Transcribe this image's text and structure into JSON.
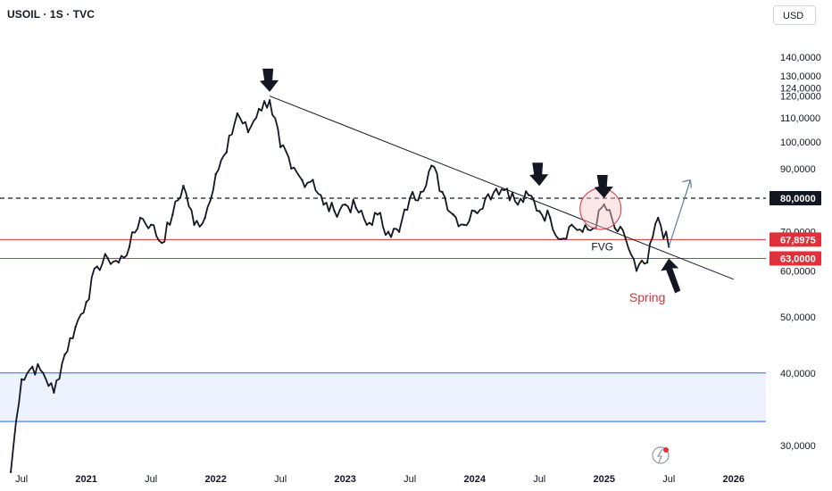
{
  "header": {
    "symbol": "USOIL · 1S · TVC",
    "currency": "USD"
  },
  "colors": {
    "price_line": "#131722",
    "trendline": "#131722",
    "red_level": "#e0303a",
    "blue_level": "#2962ff",
    "blue_zone": "#eef2ff",
    "arrow_dark": "#131722",
    "projection": "#5b7fa6",
    "circle_fill": "#f6c7cc",
    "circle_stroke": "#e0303a",
    "dashed_level": "#131722",
    "badge_black": "#131722",
    "badge_red": "#e0303a",
    "spring_text": "#e0303a",
    "grid": "#ffffff"
  },
  "chart_data": {
    "type": "line",
    "title": "USOIL · 1S · TVC",
    "xlabel": "",
    "ylabel": "",
    "ylim": [
      25,
      150
    ],
    "log_scale": true,
    "grid": false,
    "x_ticks": [
      "Jul",
      "2021",
      "Jul",
      "2022",
      "Jul",
      "2023",
      "Jul",
      "2024",
      "Jul",
      "2025",
      "Jul",
      "2026"
    ],
    "y_ticks": [
      "140,0000",
      "130,0000",
      "120,0000",
      "110,0000",
      "100,0000",
      "90,0000",
      "70,0000",
      "60,0000",
      "50,0000",
      "40,0000",
      "30,0000"
    ],
    "price_labels": [
      {
        "label": "124,0000",
        "value": 124,
        "style": "plain"
      },
      {
        "label": "80,0000",
        "value": 80,
        "style": "black"
      },
      {
        "label": "67,8975",
        "value": 67.9,
        "style": "red"
      },
      {
        "label": "63,0000",
        "value": 63,
        "style": "red"
      }
    ],
    "series": [
      {
        "x": [
          "2020-06",
          "2020-07",
          "2020-08",
          "2020-09",
          "2020-10",
          "2020-11",
          "2020-12",
          "2021-01",
          "2021-02",
          "2021-03",
          "2021-04",
          "2021-05",
          "2021-06",
          "2021-07",
          "2021-08",
          "2021-09",
          "2021-10",
          "2021-11",
          "2021-12",
          "2022-01",
          "2022-02",
          "2022-03",
          "2022-04",
          "2022-05",
          "2022-06",
          "2022-07",
          "2022-08",
          "2022-09",
          "2022-10",
          "2022-11",
          "2022-12",
          "2023-01",
          "2023-02",
          "2023-03",
          "2023-04",
          "2023-05",
          "2023-06",
          "2023-07",
          "2023-08",
          "2023-09",
          "2023-10",
          "2023-11",
          "2023-12",
          "2024-01",
          "2024-02",
          "2024-03",
          "2024-04",
          "2024-05",
          "2024-06",
          "2024-07",
          "2024-08",
          "2024-09",
          "2024-10",
          "2024-11",
          "2024-12",
          "2025-01",
          "2025-02",
          "2025-03",
          "2025-04",
          "2025-05",
          "2025-06",
          "2025-07"
        ],
        "values": [
          27,
          39,
          41,
          40,
          37,
          43,
          48,
          53,
          61,
          63,
          62,
          66,
          74,
          72,
          67,
          75,
          84,
          72,
          74,
          88,
          96,
          112,
          104,
          114,
          118,
          98,
          90,
          86,
          86,
          78,
          76,
          78,
          77,
          72,
          75,
          70,
          70,
          80,
          82,
          91,
          82,
          75,
          72,
          76,
          80,
          83,
          83,
          78,
          81,
          76,
          74,
          68,
          72,
          70,
          71,
          78,
          71,
          68,
          60,
          62,
          74,
          66
        ]
      }
    ],
    "levels": [
      {
        "value": 80,
        "style": "dashed"
      },
      {
        "value": 67.9,
        "style": "red"
      },
      {
        "value": 63,
        "style": "red"
      },
      {
        "value": 40,
        "style": "blue"
      },
      {
        "value": 33,
        "style": "blue"
      }
    ],
    "trendline": {
      "from": {
        "x": "2022-06",
        "y": 120
      },
      "to": {
        "x": "2026-01",
        "y": 58
      }
    },
    "annotations": [
      {
        "text": "FVG",
        "x": "2025-01",
        "y": 65
      },
      {
        "text": "Spring",
        "x": "2025-06",
        "y": 55
      }
    ],
    "arrows": [
      {
        "kind": "down",
        "x": "2022-06",
        "y": 122
      },
      {
        "kind": "down",
        "x": "2024-07",
        "y": 84
      },
      {
        "kind": "down",
        "x": "2025-01",
        "y": 80
      },
      {
        "kind": "up",
        "x": "2025-07",
        "y": 63
      }
    ],
    "projection": {
      "from": {
        "x": "2025-07",
        "y": 66
      },
      "to": {
        "x": "2025-09",
        "y": 86
      }
    }
  }
}
